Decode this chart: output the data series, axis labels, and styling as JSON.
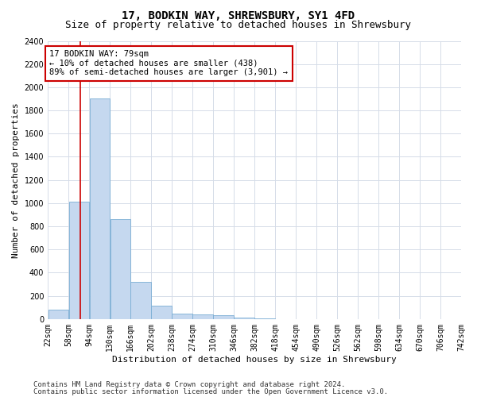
{
  "title": "17, BODKIN WAY, SHREWSBURY, SY1 4FD",
  "subtitle": "Size of property relative to detached houses in Shrewsbury",
  "xlabel": "Distribution of detached houses by size in Shrewsbury",
  "ylabel": "Number of detached properties",
  "bin_edges": [
    22,
    58,
    94,
    130,
    166,
    202,
    238,
    274,
    310,
    346,
    382,
    418,
    454,
    490,
    526,
    562,
    598,
    634,
    670,
    706,
    742
  ],
  "bar_heights": [
    80,
    1010,
    1900,
    860,
    320,
    115,
    50,
    40,
    30,
    15,
    5,
    2,
    1,
    0,
    0,
    0,
    0,
    0,
    0,
    0
  ],
  "bar_color": "#c5d8ef",
  "bar_edgecolor": "#7aadd4",
  "property_size": 79,
  "red_line_color": "#cc0000",
  "annotation_text": "17 BODKIN WAY: 79sqm\n← 10% of detached houses are smaller (438)\n89% of semi-detached houses are larger (3,901) →",
  "annotation_box_color": "#cc0000",
  "ylim": [
    0,
    2400
  ],
  "yticks": [
    0,
    200,
    400,
    600,
    800,
    1000,
    1200,
    1400,
    1600,
    1800,
    2000,
    2200,
    2400
  ],
  "footer_line1": "Contains HM Land Registry data © Crown copyright and database right 2024.",
  "footer_line2": "Contains public sector information licensed under the Open Government Licence v3.0.",
  "bg_color": "#ffffff",
  "grid_color": "#d5dce8",
  "title_fontsize": 10,
  "subtitle_fontsize": 9,
  "axis_label_fontsize": 8,
  "tick_fontsize": 7,
  "annotation_fontsize": 7.5,
  "footer_fontsize": 6.5
}
